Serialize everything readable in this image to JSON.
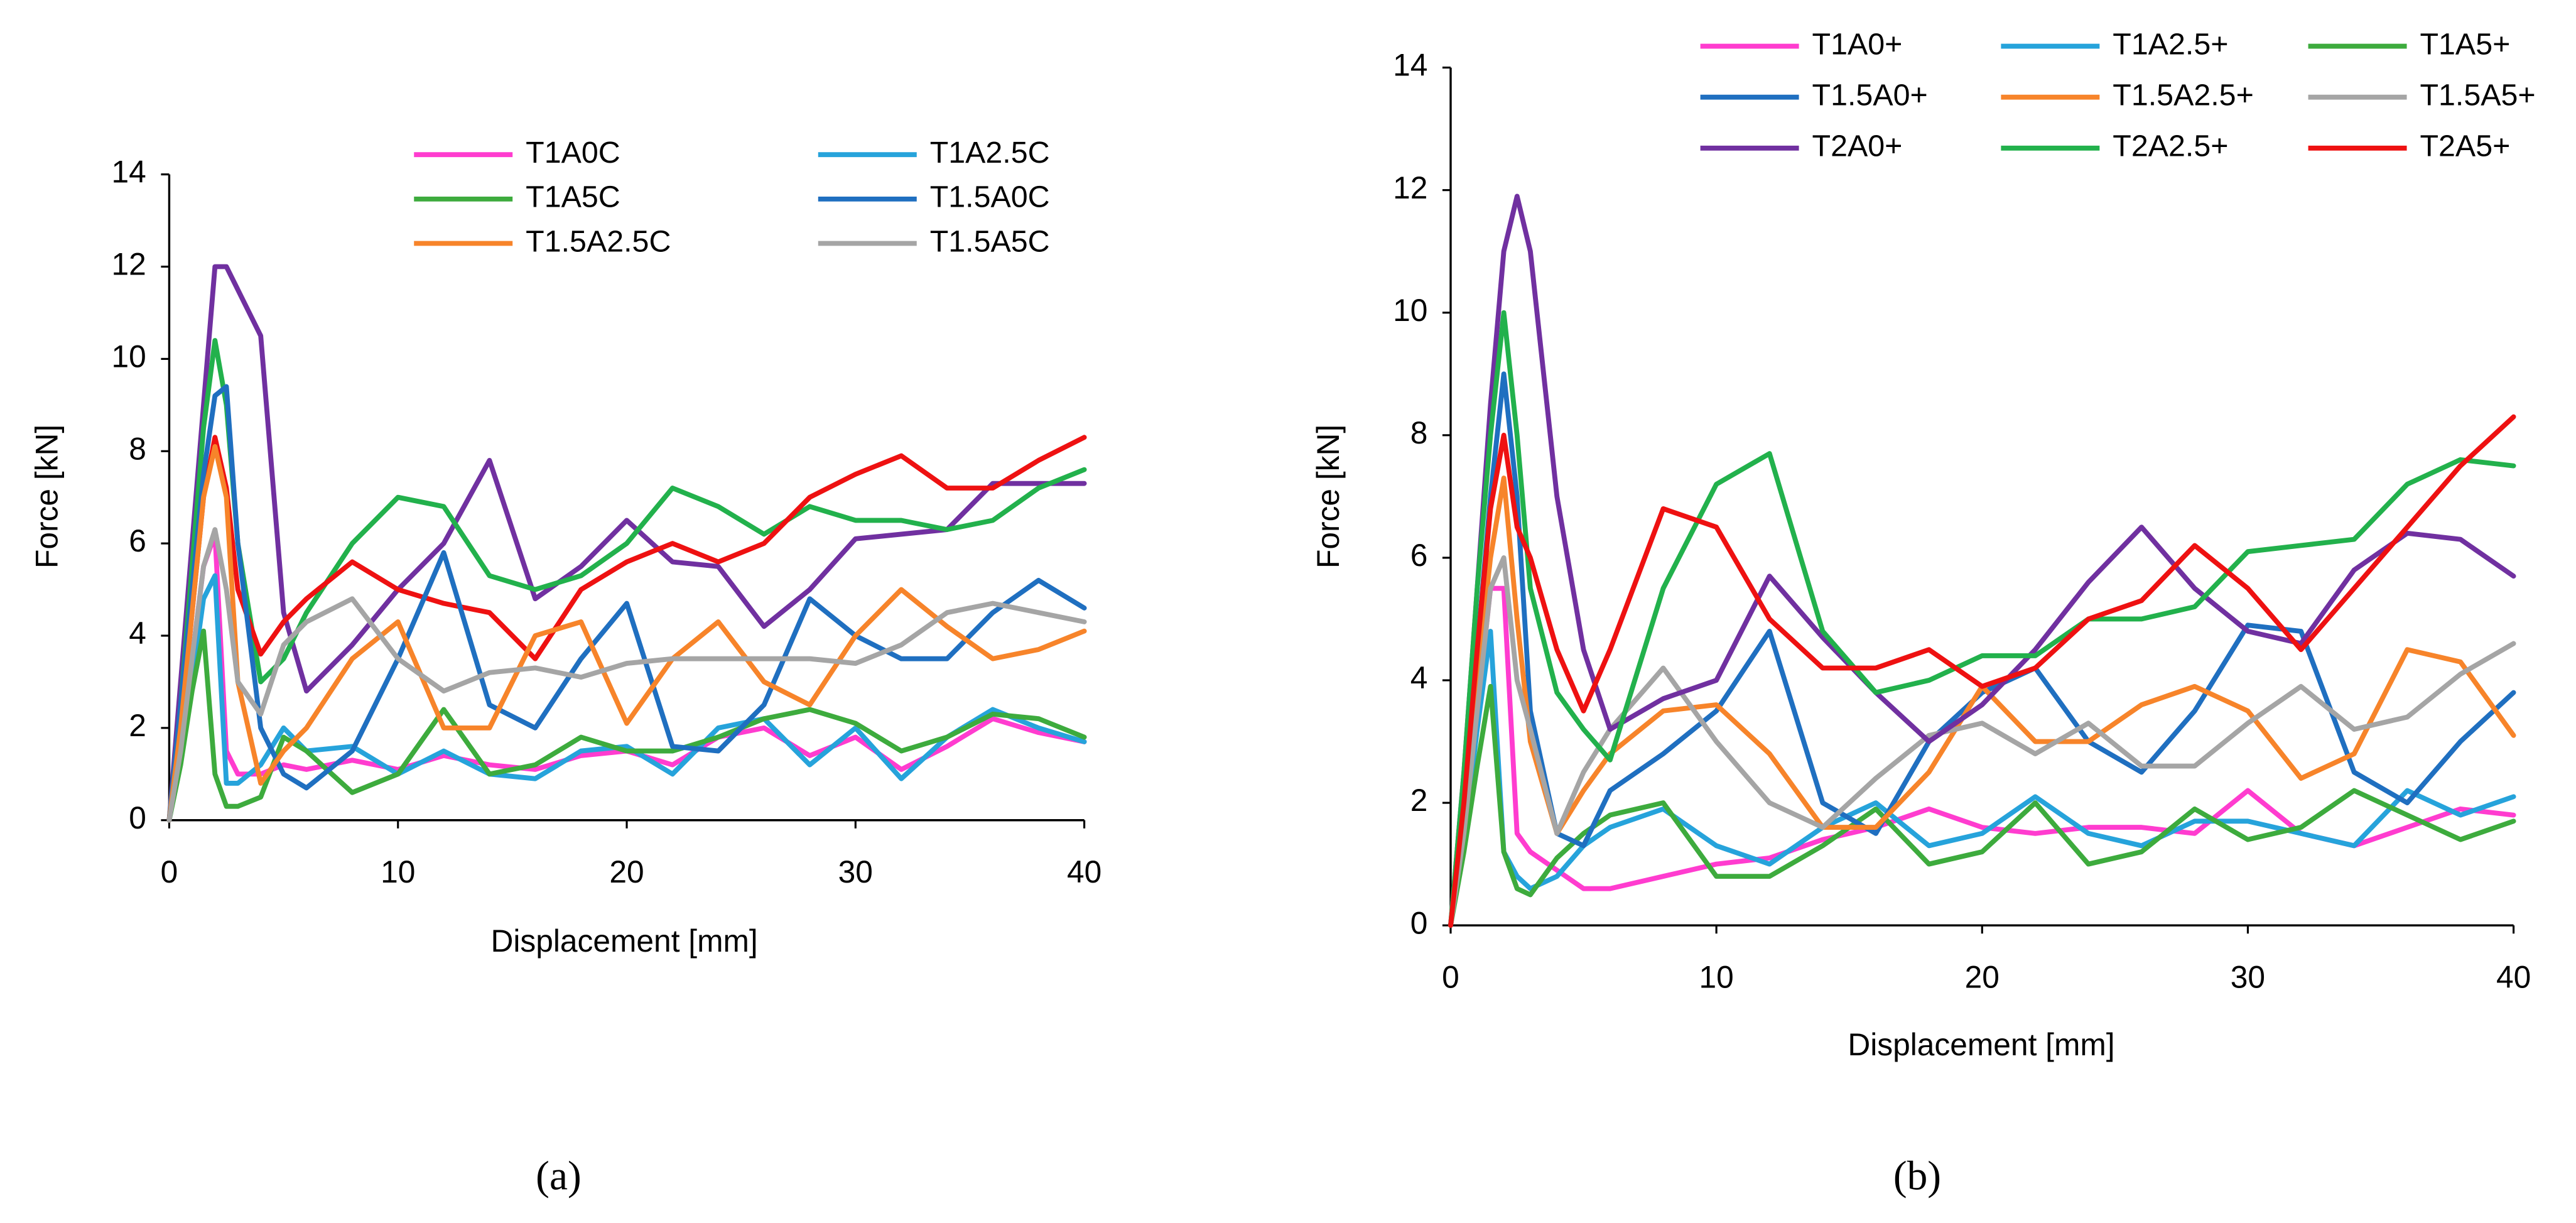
{
  "chart_data": [
    {
      "type": "line",
      "caption": "(a)",
      "x_label": "Displacement [mm]",
      "y_label": "Force [kN]",
      "xlim": [
        0,
        40
      ],
      "xticks": [
        0,
        10,
        20,
        30,
        40
      ],
      "ylim": [
        0,
        14
      ],
      "yticks": [
        0,
        2,
        4,
        6,
        8,
        10,
        12,
        14
      ],
      "x": [
        0,
        0.5,
        1,
        1.5,
        2,
        2.5,
        3,
        4,
        5,
        6,
        8,
        10,
        12,
        14,
        16,
        18,
        20,
        22,
        24,
        26,
        28,
        30,
        32,
        34,
        36,
        38,
        40
      ],
      "series": [
        {
          "color": "#7030a0",
          "values": [
            0,
            3,
            6,
            9,
            12,
            12,
            11.5,
            10.5,
            4.5,
            2.8,
            3.8,
            5,
            6,
            7.8,
            4.8,
            5.5,
            6.5,
            5.6,
            5.5,
            4.2,
            5,
            6.1,
            6.2,
            6.3,
            7.3,
            7.3,
            7.3
          ]
        },
        {
          "color": "#22b14c",
          "values": [
            0,
            2.5,
            5.5,
            8.5,
            10.4,
            9,
            6,
            3,
            3.5,
            4.5,
            6,
            7,
            6.8,
            5.3,
            5,
            5.3,
            6,
            7.2,
            6.8,
            6.2,
            6.8,
            6.5,
            6.5,
            6.3,
            6.5,
            7.2,
            7.6
          ]
        },
        {
          "color": "#ee1111",
          "values": [
            0,
            2,
            4.5,
            7,
            8.3,
            7.2,
            5,
            3.6,
            4.3,
            4.8,
            5.6,
            5,
            4.7,
            4.5,
            3.5,
            5,
            5.6,
            6,
            5.6,
            6,
            7,
            7.5,
            7.9,
            7.2,
            7.2,
            7.8,
            8.3
          ]
        },
        {
          "name": "T1A0C",
          "color": "#ff3ccf",
          "values": [
            0,
            1.5,
            3.5,
            5.5,
            6.2,
            1.5,
            1,
            1,
            1.2,
            1.1,
            1.3,
            1.1,
            1.4,
            1.2,
            1.1,
            1.4,
            1.5,
            1.2,
            1.8,
            2,
            1.4,
            1.8,
            1.1,
            1.6,
            2.2,
            1.9,
            1.7
          ]
        },
        {
          "name": "T1A2.5C",
          "color": "#26a3db",
          "values": [
            0,
            1.3,
            3,
            4.8,
            5.3,
            0.8,
            0.8,
            1.2,
            2,
            1.5,
            1.6,
            1,
            1.5,
            1,
            0.9,
            1.5,
            1.6,
            1,
            2,
            2.2,
            1.2,
            2,
            0.9,
            1.8,
            2.4,
            2,
            1.7
          ]
        },
        {
          "name": "T1A5C",
          "color": "#3dab3d",
          "values": [
            0,
            1.2,
            2.8,
            4.1,
            1,
            0.3,
            0.3,
            0.5,
            1.8,
            1.5,
            0.6,
            1,
            2.4,
            1,
            1.2,
            1.8,
            1.5,
            1.5,
            1.8,
            2.2,
            2.4,
            2.1,
            1.5,
            1.8,
            2.3,
            2.2,
            1.8
          ]
        },
        {
          "name": "T1.5A0C",
          "color": "#1f6fc0",
          "values": [
            0,
            2.5,
            5,
            7.5,
            9.2,
            9.4,
            6,
            2,
            1,
            0.7,
            1.5,
            3.5,
            5.8,
            2.5,
            2,
            3.5,
            4.7,
            1.6,
            1.5,
            2.5,
            4.8,
            4,
            3.5,
            3.5,
            4.5,
            5.2,
            4.6
          ]
        },
        {
          "name": "T1.5A2.5C",
          "color": "#f7842a",
          "values": [
            0,
            2,
            4.5,
            7,
            8.1,
            7,
            3,
            0.8,
            1.5,
            2,
            3.5,
            4.3,
            2,
            2,
            4,
            4.3,
            2.1,
            3.5,
            4.3,
            3,
            2.5,
            4,
            5,
            4.2,
            3.5,
            3.7,
            4.1
          ]
        },
        {
          "name": "T1.5A5C",
          "color": "#a5a5a5",
          "values": [
            0,
            1.5,
            3.5,
            5.5,
            6.3,
            5,
            3,
            2.3,
            3.8,
            4.3,
            4.8,
            3.5,
            2.8,
            3.2,
            3.3,
            3.1,
            3.4,
            3.5,
            3.5,
            3.5,
            3.5,
            3.4,
            3.8,
            4.5,
            4.7,
            4.5,
            4.3
          ]
        }
      ]
    },
    {
      "type": "line",
      "caption": "(b)",
      "x_label": "Displacement [mm]",
      "y_label": "Force [kN]",
      "xlim": [
        0,
        40
      ],
      "xticks": [
        0,
        10,
        20,
        30,
        40
      ],
      "ylim": [
        0,
        14
      ],
      "yticks": [
        0,
        2,
        4,
        6,
        8,
        10,
        12,
        14
      ],
      "x": [
        0,
        0.5,
        1,
        1.5,
        2,
        2.5,
        3,
        4,
        5,
        6,
        8,
        10,
        12,
        14,
        16,
        18,
        20,
        22,
        24,
        26,
        28,
        30,
        32,
        34,
        36,
        38,
        40
      ],
      "series": [
        {
          "name": "T1A0+",
          "color": "#ff3ccf",
          "values": [
            0,
            1.5,
            3.5,
            5.5,
            5.5,
            1.5,
            1.2,
            0.9,
            0.6,
            0.6,
            0.8,
            1,
            1.1,
            1.4,
            1.6,
            1.9,
            1.6,
            1.5,
            1.6,
            1.6,
            1.5,
            2.2,
            1.5,
            1.3,
            1.6,
            1.9,
            1.8
          ]
        },
        {
          "name": "T1A2.5+",
          "color": "#26a3db",
          "values": [
            0,
            1.4,
            3.2,
            4.8,
            1.2,
            0.8,
            0.6,
            0.8,
            1.3,
            1.6,
            1.9,
            1.3,
            1,
            1.6,
            2,
            1.3,
            1.5,
            2.1,
            1.5,
            1.3,
            1.7,
            1.7,
            1.5,
            1.3,
            2.2,
            1.8,
            2.1
          ]
        },
        {
          "name": "T1A5+",
          "color": "#3dab3d",
          "values": [
            0,
            1.2,
            2.6,
            3.9,
            1.2,
            0.6,
            0.5,
            1.1,
            1.5,
            1.8,
            2,
            0.8,
            0.8,
            1.3,
            1.9,
            1,
            1.2,
            2,
            1,
            1.2,
            1.9,
            1.4,
            1.6,
            2.2,
            1.8,
            1.4,
            1.7
          ]
        },
        {
          "name": "T1.5A0+",
          "color": "#1f6fc0",
          "values": [
            0,
            2,
            4.5,
            7,
            9,
            7,
            3.5,
            1.5,
            1.3,
            2.2,
            2.8,
            3.5,
            4.8,
            2,
            1.5,
            3,
            3.8,
            4.2,
            3,
            2.5,
            3.5,
            4.9,
            4.8,
            2.5,
            2,
            3,
            3.8
          ]
        },
        {
          "name": "T1.5A2.5+",
          "color": "#f7842a",
          "values": [
            0,
            1.8,
            4,
            6,
            7.3,
            5,
            3,
            1.5,
            2.2,
            2.8,
            3.5,
            3.6,
            2.8,
            1.6,
            1.6,
            2.5,
            3.9,
            3,
            3,
            3.6,
            3.9,
            3.5,
            2.4,
            2.8,
            4.5,
            4.3,
            3.1
          ]
        },
        {
          "name": "T1.5A5+",
          "color": "#a5a5a5",
          "values": [
            0,
            1.5,
            3.5,
            5.5,
            6,
            4,
            3.2,
            1.5,
            2.5,
            3.2,
            4.2,
            3,
            2,
            1.6,
            2.4,
            3.1,
            3.3,
            2.8,
            3.3,
            2.6,
            2.6,
            3.3,
            3.9,
            3.2,
            3.4,
            4.1,
            4.6
          ]
        },
        {
          "name": "T2A0+",
          "color": "#7030a0",
          "values": [
            0,
            2.5,
            5.5,
            8.5,
            11,
            11.9,
            11,
            7,
            4.5,
            3.2,
            3.7,
            4,
            5.7,
            4.7,
            3.8,
            3,
            3.6,
            4.5,
            5.6,
            6.5,
            5.5,
            4.8,
            4.6,
            5.8,
            6.4,
            6.3,
            5.7
          ]
        },
        {
          "name": "T2A2.5+",
          "color": "#22b14c",
          "values": [
            0,
            2.5,
            5.5,
            8,
            10,
            8,
            5.5,
            3.8,
            3.2,
            2.7,
            5.5,
            7.2,
            7.7,
            4.8,
            3.8,
            4,
            4.4,
            4.4,
            5,
            5,
            5.2,
            6.1,
            6.2,
            6.3,
            7.2,
            7.6,
            7.5
          ]
        },
        {
          "name": "T2A5+",
          "color": "#ee1111",
          "values": [
            0,
            2,
            4.5,
            6.8,
            8,
            6.5,
            6,
            4.5,
            3.5,
            4.5,
            6.8,
            6.5,
            5,
            4.2,
            4.2,
            4.5,
            3.9,
            4.2,
            5,
            5.3,
            6.2,
            5.5,
            4.5,
            5.5,
            6.5,
            7.5,
            8.3
          ]
        }
      ]
    }
  ]
}
